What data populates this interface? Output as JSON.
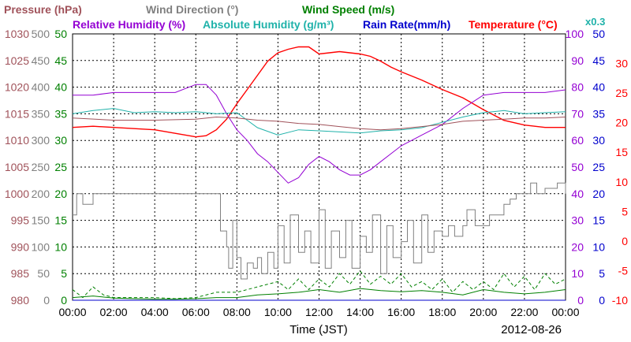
{
  "chart_data": {
    "type": "line",
    "xlabel": "Time (JST)",
    "date_label": "2012-08-26",
    "x_ticks": [
      "00:00",
      "02:00",
      "04:00",
      "06:00",
      "08:00",
      "10:00",
      "12:00",
      "14:00",
      "16:00",
      "18:00",
      "20:00",
      "22:00",
      "00:00"
    ],
    "x_range_hours": [
      0,
      24
    ],
    "grid": true,
    "legend": {
      "pressure": {
        "label": "Pressure (hPa)",
        "color": "#a0525a"
      },
      "wind_dir": {
        "label": "Wind Direction (°)",
        "color": "#808080"
      },
      "wind_speed": {
        "label": "Wind Speed (m/s)",
        "color": "#008000"
      },
      "rh": {
        "label": "Relative Humidity (%)",
        "color": "#9400d3"
      },
      "ah": {
        "label": "Absolute Humidity (g/m³)",
        "color": "#20b2aa"
      },
      "ah_scale": "x0.3",
      "rain": {
        "label": "Rain Rate(mm/h)",
        "color": "#0000cd"
      },
      "temp": {
        "label": "Temperature (°C)",
        "color": "#ff0000"
      }
    },
    "axes": {
      "pressure": {
        "ticks": [
          "1030",
          "1025",
          "1020",
          "1015",
          "1010",
          "1005",
          "1000",
          "995",
          "990",
          "985",
          "980"
        ],
        "range": [
          980,
          1030
        ],
        "color": "#a0525a"
      },
      "wind_dir": {
        "ticks": [
          "500",
          "450",
          "400",
          "350",
          "300",
          "250",
          "200",
          "150",
          "100",
          "50",
          "0"
        ],
        "range": [
          0,
          500
        ],
        "color": "#808080"
      },
      "wind_speed": {
        "ticks": [
          "50",
          "45",
          "40",
          "35",
          "30",
          "25",
          "20",
          "15",
          "10",
          "5",
          "0"
        ],
        "range": [
          0,
          50
        ],
        "color": "#008000"
      },
      "rh": {
        "ticks": [
          "100",
          "90",
          "80",
          "70",
          "60",
          "50",
          "40",
          "30",
          "20",
          "10",
          "0"
        ],
        "range": [
          0,
          100
        ],
        "color": "#9400d3"
      },
      "rain": {
        "ticks": [
          "50",
          "45",
          "40",
          "35",
          "30",
          "25",
          "20",
          "15",
          "10",
          "5",
          "0"
        ],
        "range": [
          0,
          50
        ],
        "color": "#0000cd"
      },
      "temp": {
        "ticks": [
          "30",
          "25",
          "20",
          "15",
          "10",
          "5",
          "0",
          "-5",
          "-10"
        ],
        "range": [
          -10,
          35
        ],
        "color": "#ff0000"
      }
    },
    "series": [
      {
        "name": "Temperature",
        "axis": "temp",
        "color": "#ff0000",
        "x": [
          0,
          1,
          2,
          3,
          4,
          5,
          6,
          6.5,
          7,
          7.5,
          8,
          8.5,
          9,
          9.5,
          10,
          10.5,
          11,
          11.5,
          12,
          12.5,
          13,
          13.5,
          14,
          14.5,
          15,
          15.5,
          16,
          17,
          18,
          19,
          20,
          21,
          22,
          23,
          24
        ],
        "y": [
          19.2,
          19.4,
          19.2,
          19.0,
          18.8,
          18.2,
          17.6,
          17.8,
          18.8,
          20.6,
          23.2,
          25.6,
          28.0,
          30.4,
          31.8,
          32.4,
          32.8,
          32.8,
          31.6,
          31.8,
          32.0,
          31.8,
          31.6,
          31.2,
          30.4,
          29.4,
          28.6,
          27.2,
          25.6,
          24.2,
          22.2,
          20.4,
          19.6,
          19.2,
          19.2
        ]
      },
      {
        "name": "Relative Humidity",
        "axis": "rh",
        "color": "#9400d3",
        "x": [
          0,
          1,
          2,
          3,
          4,
          5,
          6,
          6.5,
          7,
          7.5,
          8,
          8.5,
          9,
          9.5,
          10,
          10.5,
          11,
          11.5,
          12,
          12.5,
          13,
          13.5,
          14,
          14.5,
          15,
          15.5,
          16,
          17,
          18,
          19,
          20,
          21,
          22,
          23,
          24
        ],
        "y": [
          77,
          77,
          78,
          78,
          78,
          78,
          81,
          81,
          77,
          70,
          64,
          60,
          55,
          52,
          48,
          44,
          46,
          51,
          54,
          52,
          49,
          47,
          47,
          49,
          52,
          55,
          58,
          62,
          66,
          72,
          77,
          78,
          78,
          78,
          79
        ]
      },
      {
        "name": "Absolute Humidity",
        "axis": "pressure",
        "color": "#20b2aa",
        "x": [
          0,
          1,
          2,
          3,
          4,
          5,
          6,
          7,
          8,
          9,
          10,
          11,
          12,
          13,
          14,
          15,
          16,
          17,
          18,
          19,
          20,
          21,
          22,
          23,
          24
        ],
        "y": [
          1015.0,
          1015.6,
          1016.0,
          1015.2,
          1015.4,
          1015.2,
          1015.4,
          1015.0,
          1015.2,
          1012.4,
          1011.0,
          1012.0,
          1011.8,
          1011.6,
          1011.4,
          1011.8,
          1012.0,
          1012.4,
          1013.4,
          1014.4,
          1015.2,
          1015.6,
          1015.0,
          1015.2,
          1015.4
        ]
      },
      {
        "name": "Pressure",
        "axis": "pressure",
        "color": "#a0525a",
        "x": [
          0,
          2,
          4,
          6,
          7,
          8,
          9,
          10,
          11,
          12,
          13,
          14,
          15,
          16,
          17,
          18,
          19,
          20,
          21,
          22,
          23,
          24
        ],
        "y": [
          1014.2,
          1013.8,
          1013.8,
          1014.0,
          1014.4,
          1014.2,
          1013.8,
          1013.6,
          1013.2,
          1013.0,
          1012.6,
          1012.2,
          1012.0,
          1012.2,
          1012.6,
          1013.0,
          1013.6,
          1013.8,
          1014.0,
          1014.2,
          1014.2,
          1014.4
        ]
      },
      {
        "name": "Wind Direction",
        "axis": "wind_dir",
        "color": "#808080",
        "x": [
          0,
          0.2,
          0.5,
          1,
          1.5,
          2,
          3,
          4,
          5,
          6,
          7,
          7.2,
          7.5,
          7.6,
          7.8,
          8.0,
          8.2,
          8.5,
          8.8,
          9.0,
          9.2,
          9.5,
          9.8,
          10.0,
          10.3,
          10.6,
          11.0,
          11.3,
          11.6,
          12.0,
          12.3,
          12.6,
          13.0,
          13.3,
          13.6,
          14.0,
          14.3,
          14.6,
          15.0,
          15.3,
          15.6,
          16.0,
          16.3,
          16.6,
          17.0,
          17.3,
          17.6,
          18.0,
          18.3,
          18.6,
          19.0,
          19.2,
          19.6,
          20.0,
          20.3,
          20.6,
          21.0,
          21.3,
          21.6,
          22.0,
          22.3,
          22.6,
          23.0,
          23.3,
          23.6,
          24
        ],
        "y": [
          160,
          200,
          180,
          200,
          200,
          200,
          200,
          200,
          200,
          200,
          200,
          130,
          100,
          60,
          150,
          80,
          40,
          70,
          60,
          80,
          50,
          90,
          60,
          140,
          70,
          160,
          90,
          130,
          70,
          170,
          60,
          130,
          80,
          150,
          60,
          120,
          90,
          160,
          50,
          140,
          80,
          110,
          150,
          70,
          160,
          90,
          130,
          120,
          140,
          120,
          140,
          170,
          140,
          140,
          160,
          160,
          180,
          190,
          200,
          200,
          220,
          200,
          210,
          210,
          220,
          200
        ]
      },
      {
        "name": "Wind Speed",
        "axis": "wind_speed",
        "color": "#008000",
        "x": [
          0,
          1,
          2,
          3,
          4,
          5,
          6,
          7,
          8,
          9,
          10,
          11,
          12,
          13,
          14,
          15,
          16,
          17,
          18,
          19,
          20,
          21,
          22,
          23,
          24
        ],
        "y": [
          0.5,
          0.8,
          0.4,
          0.3,
          0.2,
          0.2,
          0.3,
          0.5,
          0.5,
          1.0,
          1.2,
          1.5,
          2.0,
          1.5,
          2.2,
          1.8,
          1.6,
          1.8,
          1.5,
          1.0,
          2.0,
          1.5,
          1.2,
          1.5,
          2.0
        ]
      },
      {
        "name": "Wind Speed Gust",
        "axis": "wind_speed",
        "color": "#008000",
        "x": [
          0,
          0.5,
          1,
          1.5,
          2,
          3,
          4,
          5,
          6,
          7,
          8,
          9,
          10,
          10.5,
          11,
          11.5,
          12,
          12.5,
          13,
          13.5,
          14,
          14.5,
          15,
          15.5,
          16,
          16.5,
          17,
          17.5,
          18,
          18.5,
          19,
          19.5,
          20,
          20.5,
          21,
          21.5,
          22,
          22.5,
          23,
          23.5,
          24
        ],
        "y": [
          2.0,
          0.5,
          2.5,
          1.0,
          0.5,
          0.5,
          0.5,
          0.3,
          0.5,
          1.5,
          1.5,
          2.5,
          3.5,
          2.0,
          4.0,
          2.0,
          4.0,
          2.5,
          5.0,
          3.0,
          5.5,
          3.0,
          4.5,
          3.0,
          5.0,
          2.5,
          3.5,
          2.0,
          4.0,
          1.5,
          3.5,
          2.0,
          3.5,
          2.0,
          5.0,
          2.5,
          4.5,
          2.0,
          5.0,
          3.0,
          4.0
        ]
      },
      {
        "name": "Rain Rate",
        "axis": "rain",
        "color": "#0000cd",
        "x": [
          0,
          24
        ],
        "y": [
          0,
          0
        ]
      }
    ]
  }
}
